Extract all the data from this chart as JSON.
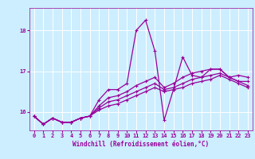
{
  "xlabel": "Windchill (Refroidissement éolien,°C)",
  "bg_color": "#cceeff",
  "line_color": "#990099",
  "grid_color": "#ffffff",
  "xlim": [
    -0.5,
    23.5
  ],
  "ylim": [
    15.55,
    18.55
  ],
  "yticks": [
    16,
    17,
    18
  ],
  "xticks": [
    0,
    1,
    2,
    3,
    4,
    5,
    6,
    7,
    8,
    9,
    10,
    11,
    12,
    13,
    14,
    15,
    16,
    17,
    18,
    19,
    20,
    21,
    22,
    23
  ],
  "series": [
    [
      15.9,
      15.7,
      15.85,
      15.75,
      15.75,
      15.85,
      15.9,
      16.3,
      16.55,
      16.55,
      16.7,
      18.0,
      18.25,
      17.5,
      15.8,
      16.55,
      17.35,
      16.9,
      16.85,
      17.05,
      17.05,
      16.85,
      16.9,
      16.85
    ],
    [
      15.9,
      15.7,
      15.85,
      15.75,
      15.75,
      15.85,
      15.9,
      16.15,
      16.35,
      16.4,
      16.5,
      16.65,
      16.75,
      16.85,
      16.6,
      16.7,
      16.85,
      16.95,
      17.0,
      17.05,
      17.05,
      16.85,
      16.75,
      16.75
    ],
    [
      15.9,
      15.7,
      15.85,
      15.75,
      15.75,
      15.85,
      15.9,
      16.1,
      16.25,
      16.3,
      16.4,
      16.5,
      16.6,
      16.7,
      16.55,
      16.6,
      16.7,
      16.8,
      16.85,
      16.9,
      16.95,
      16.85,
      16.75,
      16.65
    ],
    [
      15.9,
      15.7,
      15.85,
      15.75,
      15.75,
      15.85,
      15.9,
      16.05,
      16.15,
      16.2,
      16.3,
      16.4,
      16.5,
      16.6,
      16.5,
      16.55,
      16.6,
      16.7,
      16.75,
      16.8,
      16.9,
      16.8,
      16.7,
      16.6
    ]
  ],
  "xlabel_fontsize": 5.5,
  "tick_fontsize": 5,
  "linewidth": 0.9,
  "markersize": 2.5
}
